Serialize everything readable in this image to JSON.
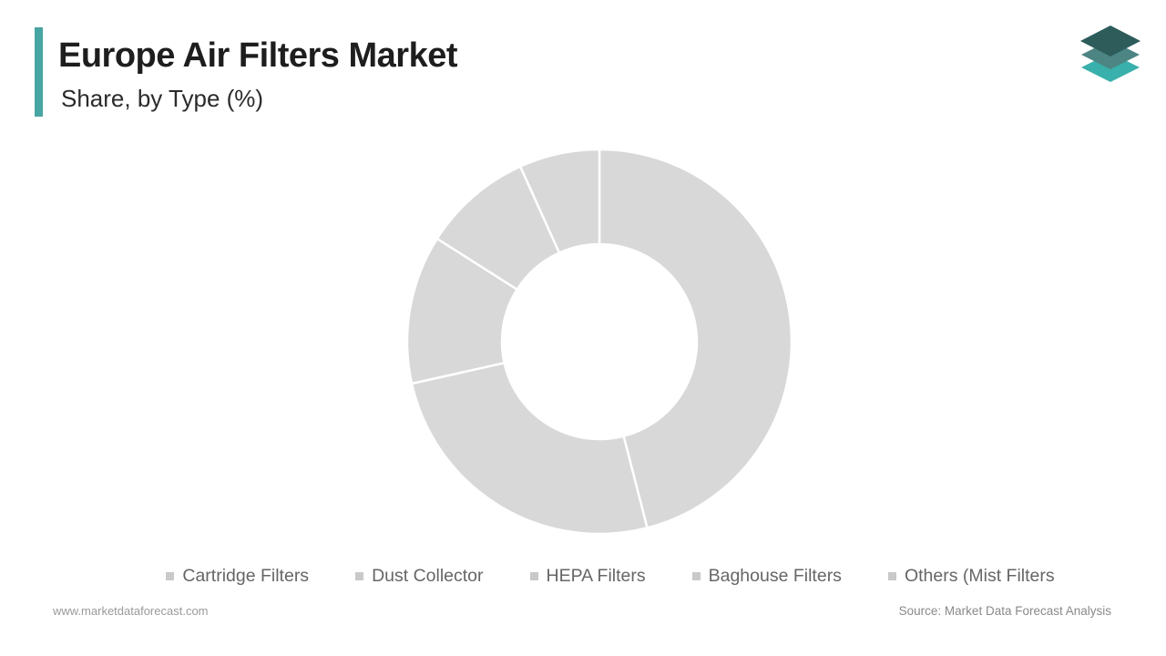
{
  "header": {
    "title": "Europe Air Filters Market",
    "subtitle": "Share, by Type (%)",
    "accent_color": "#47a5a2"
  },
  "logo": {
    "name": "market-data-forecast-logo",
    "layer_colors": {
      "top": "#2d5c5b",
      "middle": "#4c8583",
      "bottom": "#39b0ab"
    }
  },
  "chart_data": {
    "type": "pie",
    "subtype": "donut",
    "title": "Europe Air Filters Market Share, by Type (%)",
    "categories": [
      "Cartridge Filters",
      "Dust Collector",
      "HEPA Filters",
      "Baghouse Filters",
      "Others (Mist Filters"
    ],
    "values": [
      46,
      25.5,
      12.5,
      9.25,
      6.75
    ],
    "unit": "%",
    "segment_color": "#d8d8d8",
    "gap_color": "#ffffff",
    "start_angle_deg": 0,
    "direction": "clockwise",
    "inner_radius_ratio": 0.507,
    "legend_position": "bottom",
    "legend_marker_color": "#c9c9c9",
    "legend_text_color": "#666666",
    "data_labels_visible": false
  },
  "footer": {
    "website": "www.marketdataforecast.com",
    "source": "Source: Market Data Forecast Analysis"
  }
}
